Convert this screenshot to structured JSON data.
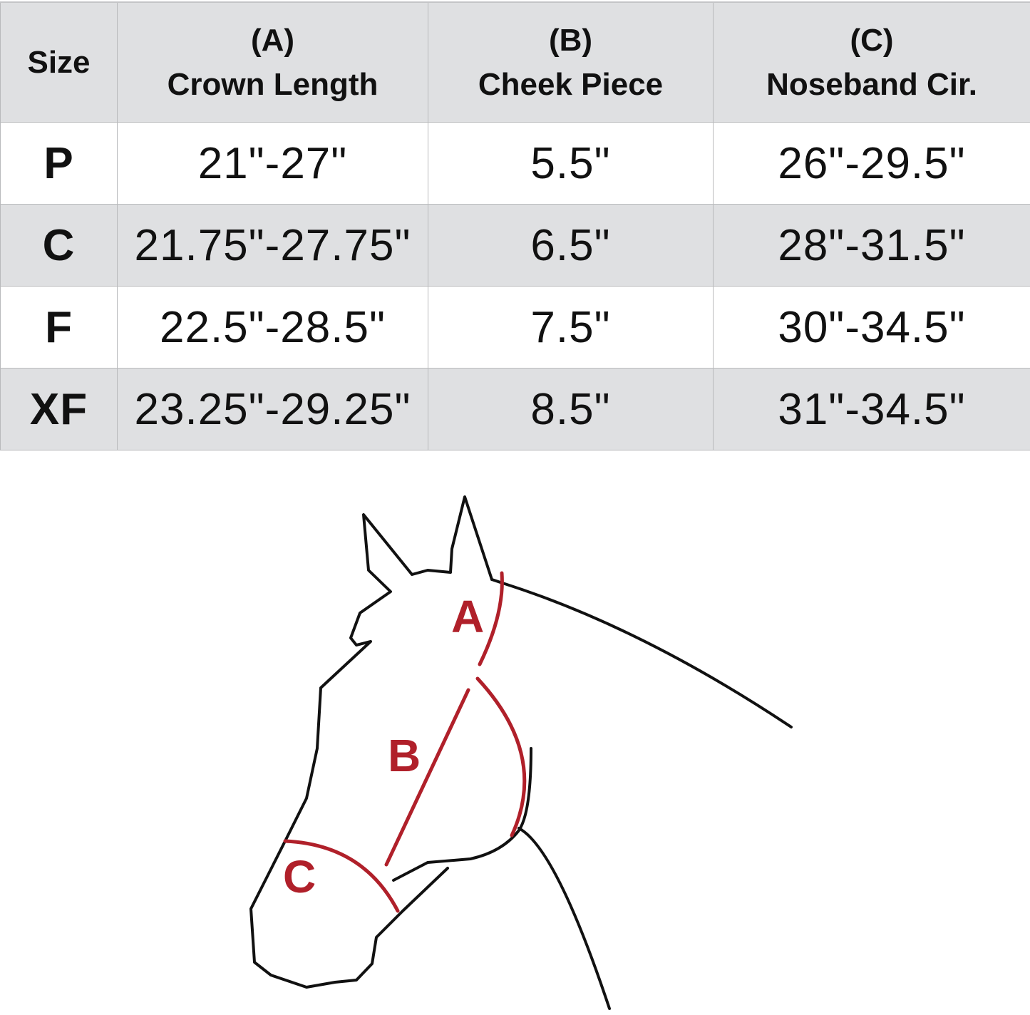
{
  "table": {
    "headers": [
      {
        "letter": "",
        "label": "Size"
      },
      {
        "letter": "(A)",
        "label": "Crown Length"
      },
      {
        "letter": "(B)",
        "label": "Cheek Piece"
      },
      {
        "letter": "(C)",
        "label": "Noseband Cir."
      }
    ],
    "rows": [
      {
        "size": "P",
        "crown": "21\"-27\"",
        "cheek": "5.5\"",
        "noseband": "26\"-29.5\""
      },
      {
        "size": "C",
        "crown": "21.75\"-27.75\"",
        "cheek": "6.5\"",
        "noseband": "28\"-31.5\""
      },
      {
        "size": "F",
        "crown": "22.5\"-28.5\"",
        "cheek": "7.5\"",
        "noseband": "30\"-34.5\""
      },
      {
        "size": "XF",
        "crown": "23.25\"-29.25\"",
        "cheek": "8.5\"",
        "noseband": "31\"-34.5\""
      }
    ],
    "header_bg": "#dfe0e2"
  },
  "diagram": {
    "labels": {
      "a": "A",
      "b": "B",
      "c": "C"
    },
    "accent_color": "#b0202a",
    "outline_color": "#111111"
  }
}
